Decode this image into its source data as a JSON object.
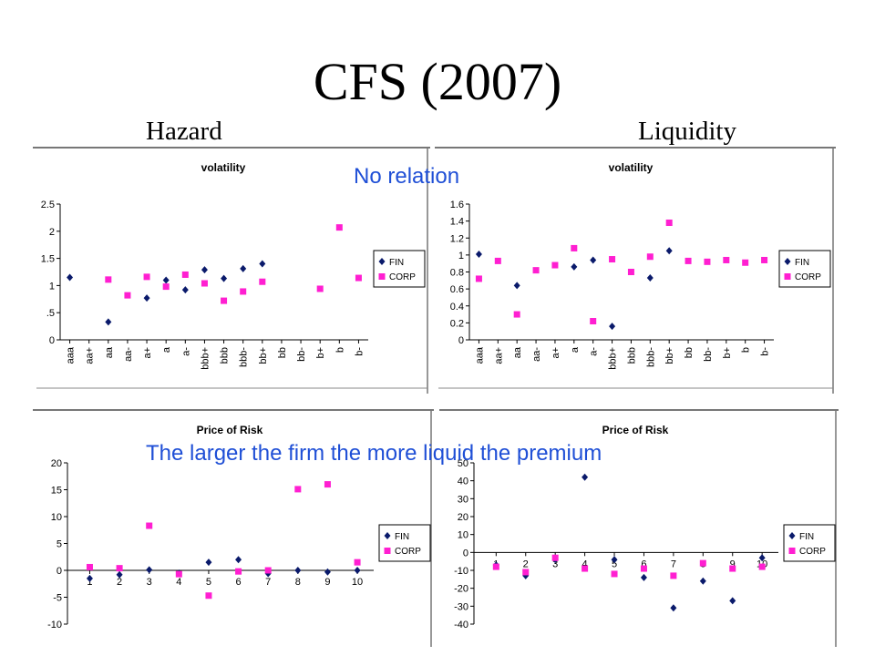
{
  "slide": {
    "title": "CFS (2007)",
    "left_heading": "Hazard",
    "right_heading": "Liquidity",
    "annotation_top": "No relation",
    "annotation_bottom": "The larger the firm the more liquid the premium"
  },
  "colors": {
    "fin": "#0a1a6b",
    "corp": "#ff1fd1",
    "annotation": "#1f4fd6"
  },
  "chart_data": [
    {
      "id": "hazard-volatility",
      "type": "scatter",
      "title": "volatility",
      "categories": [
        "aaa",
        "aa+",
        "aa",
        "aa-",
        "a+",
        "a",
        "a-",
        "bbb+",
        "bbb",
        "bbb-",
        "bb+",
        "bb",
        "bb-",
        "b+",
        "b",
        "b-"
      ],
      "ylim": [
        0,
        2.5
      ],
      "yticks": [
        "0",
        ".5",
        "1",
        "1.5",
        "2",
        "2.5"
      ],
      "ytick_values": [
        0,
        0.5,
        1,
        1.5,
        2,
        2.5
      ],
      "legend": [
        "FIN",
        "CORP"
      ],
      "series": [
        {
          "name": "FIN",
          "values": [
            1.15,
            null,
            0.33,
            null,
            0.77,
            1.1,
            0.92,
            1.29,
            1.13,
            1.31,
            1.4,
            null,
            null,
            null,
            null,
            null
          ]
        },
        {
          "name": "CORP",
          "values": [
            null,
            null,
            1.11,
            0.82,
            1.16,
            0.98,
            1.2,
            1.04,
            0.72,
            0.89,
            1.07,
            null,
            null,
            0.94,
            2.07,
            1.14
          ]
        }
      ]
    },
    {
      "id": "liquidity-volatility",
      "type": "scatter",
      "title": "volatility",
      "categories": [
        "aaa",
        "aa+",
        "aa",
        "aa-",
        "a+",
        "a",
        "a-",
        "bbb+",
        "bbb",
        "bbb-",
        "bb+",
        "bb",
        "bb-",
        "b+",
        "b",
        "b-"
      ],
      "ylim": [
        0,
        1.6
      ],
      "yticks": [
        "0",
        "0.2",
        "0.4",
        "0.6",
        "0.8",
        "1",
        "1.2",
        "1.4",
        "1.6"
      ],
      "ytick_values": [
        0,
        0.2,
        0.4,
        0.6,
        0.8,
        1,
        1.2,
        1.4,
        1.6
      ],
      "legend": [
        "FIN",
        "CORP"
      ],
      "series": [
        {
          "name": "FIN",
          "values": [
            1.01,
            null,
            0.64,
            null,
            null,
            0.86,
            0.94,
            0.16,
            null,
            0.73,
            1.05,
            null,
            null,
            null,
            null,
            null
          ]
        },
        {
          "name": "CORP",
          "values": [
            0.72,
            0.93,
            0.3,
            0.82,
            0.88,
            1.08,
            0.22,
            0.95,
            0.8,
            0.98,
            1.38,
            0.93,
            0.92,
            0.94,
            0.91,
            0.94
          ]
        }
      ]
    },
    {
      "id": "hazard-price-of-risk",
      "type": "scatter",
      "title": "Price of Risk",
      "categories": [
        "1",
        "2",
        "3",
        "4",
        "5",
        "6",
        "7",
        "8",
        "9",
        "10"
      ],
      "ylim": [
        -10,
        20
      ],
      "yticks": [
        "-10",
        "-5",
        "0",
        "5",
        "10",
        "15",
        "20"
      ],
      "ytick_values": [
        -10,
        -5,
        0,
        5,
        10,
        15,
        20
      ],
      "legend": [
        "FIN",
        "CORP"
      ],
      "series": [
        {
          "name": "FIN",
          "values": [
            -1.5,
            -0.8,
            0.1,
            -0.5,
            1.5,
            2.0,
            -0.6,
            0,
            -0.3,
            0
          ]
        },
        {
          "name": "CORP",
          "values": [
            0.6,
            0.4,
            8.3,
            -0.7,
            -4.7,
            -0.2,
            0,
            15.1,
            16.0,
            1.5
          ]
        }
      ]
    },
    {
      "id": "liquidity-price-of-risk",
      "type": "scatter",
      "title": "Price of Risk",
      "categories": [
        "1",
        "2",
        "3",
        "4",
        "5",
        "6",
        "7",
        "8",
        "9",
        "10"
      ],
      "ylim": [
        -40,
        50
      ],
      "yticks": [
        "-40",
        "-30",
        "-20",
        "-10",
        "0",
        "10",
        "20",
        "30",
        "40",
        "50"
      ],
      "ytick_values": [
        -40,
        -30,
        -20,
        -10,
        0,
        10,
        20,
        30,
        40,
        50
      ],
      "legend": [
        "FIN",
        "CORP"
      ],
      "series": [
        {
          "name": "FIN",
          "values": [
            -7,
            -13,
            -4,
            42,
            -4,
            -14,
            -31,
            -16,
            -27,
            -3
          ]
        },
        {
          "name": "CORP",
          "values": [
            -8,
            -11,
            -3,
            -9,
            -12,
            -9,
            -13,
            -6,
            -9,
            -8
          ]
        }
      ]
    }
  ]
}
